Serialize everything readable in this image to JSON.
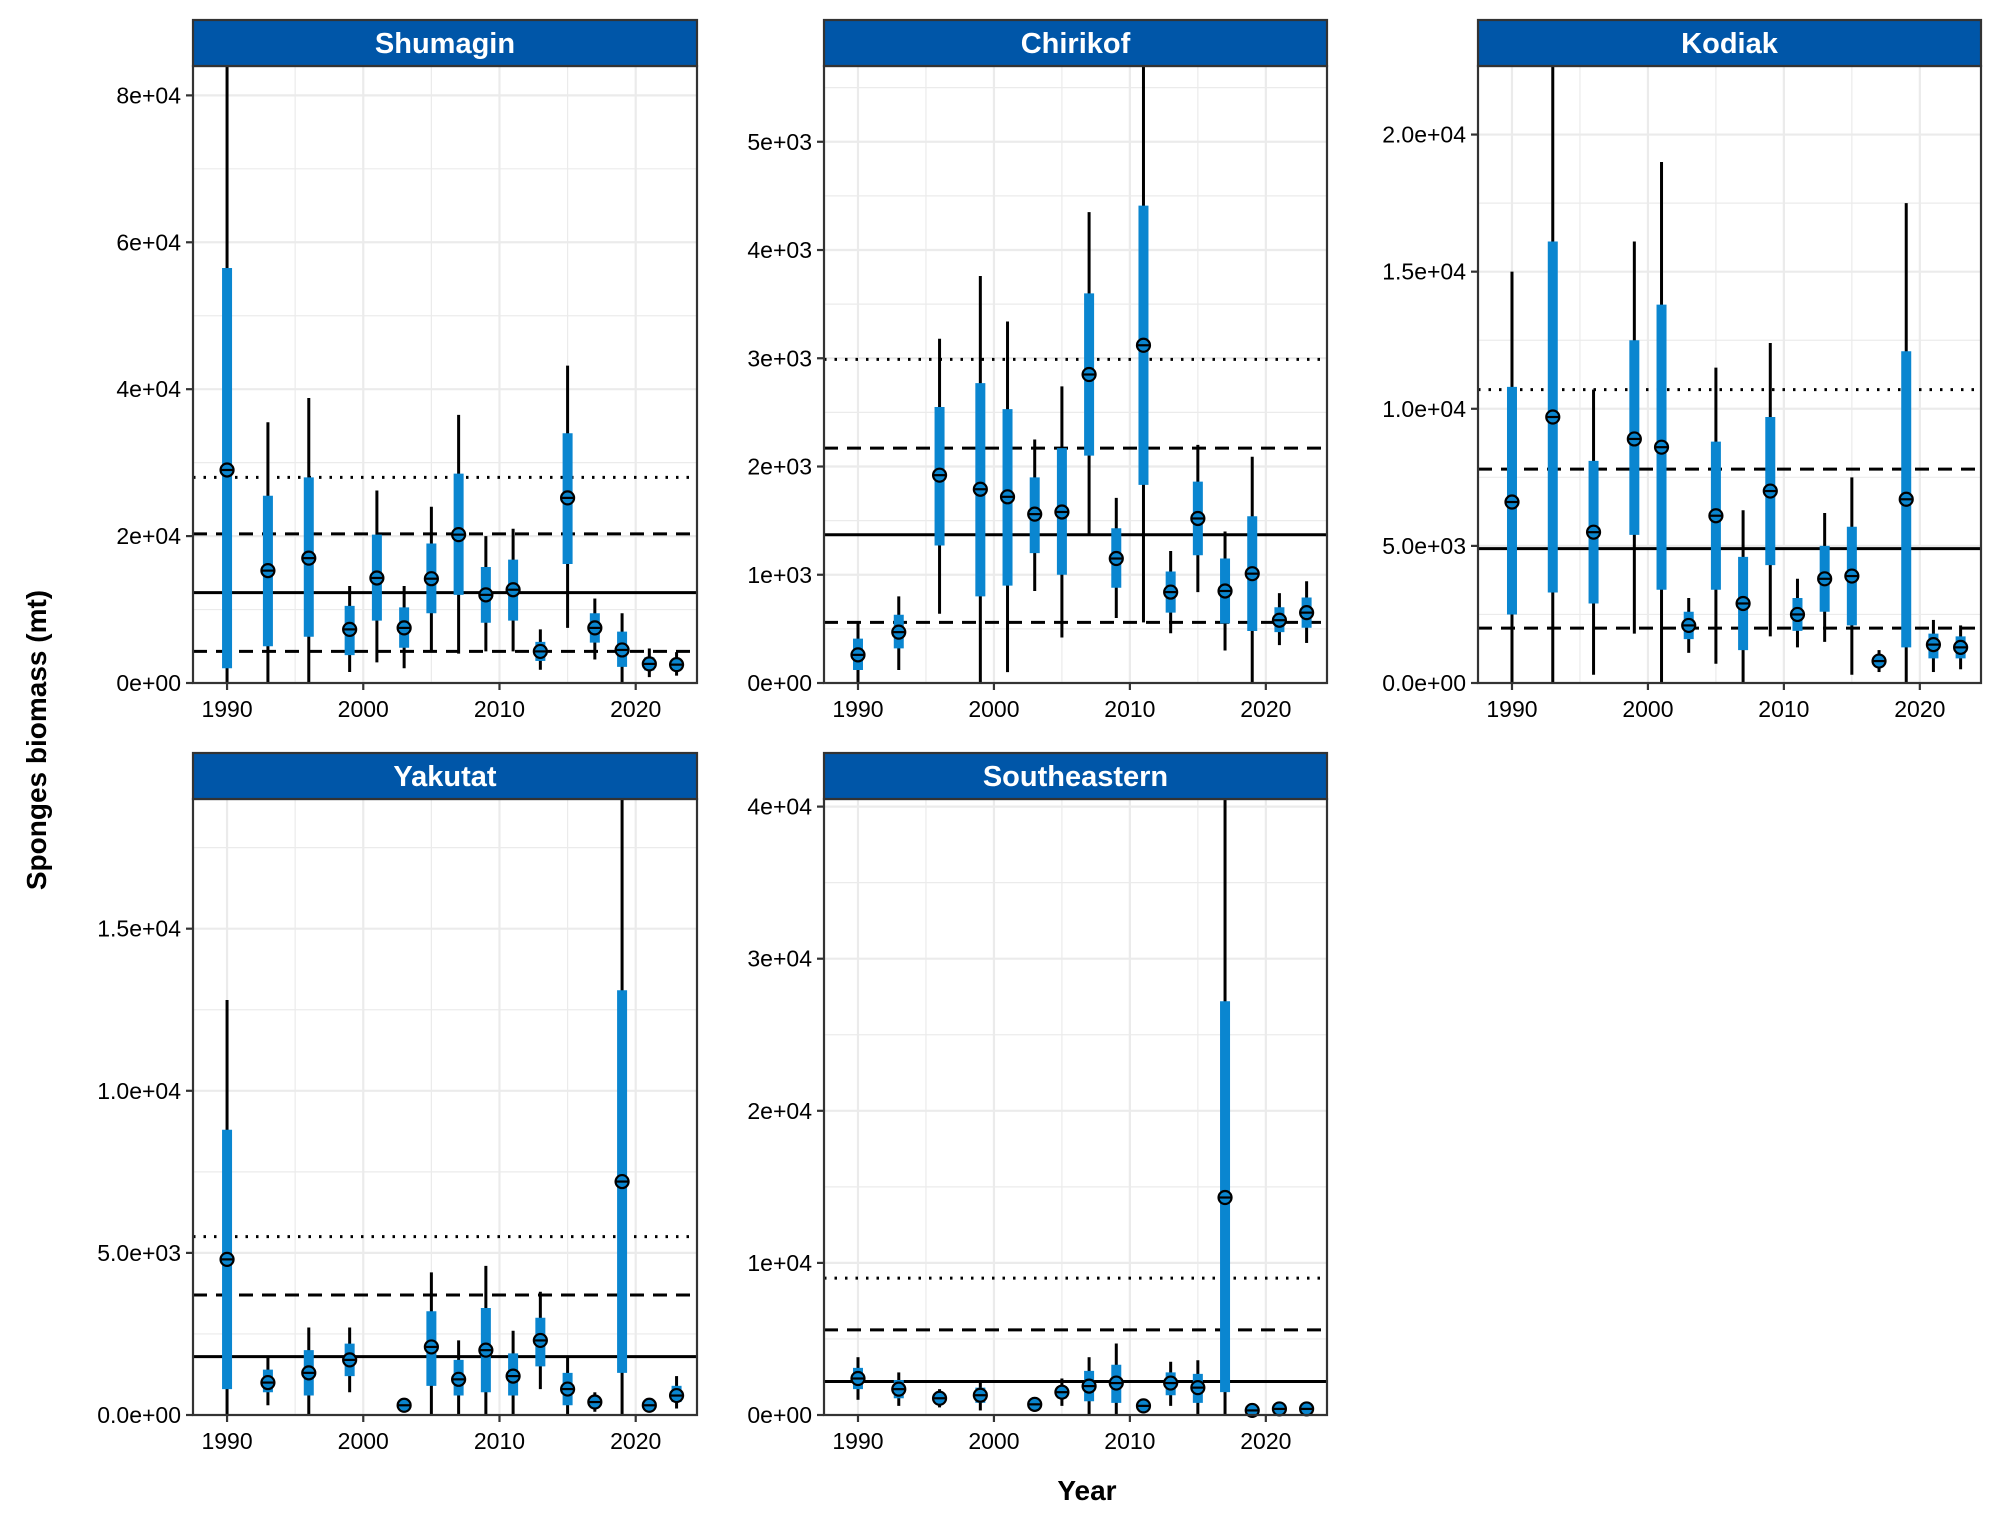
{
  "figure": {
    "xlabel": "Year",
    "ylabel": "Sponges biomass (mt)"
  },
  "colors": {
    "strip": "#0056A8",
    "interval_inner": "#0A86D0",
    "interval_outer": "#000000",
    "grid": "#EBEBEB",
    "reference_lines": "#000000"
  },
  "chart_data": [
    {
      "type": "pointrange",
      "panel": "Shumagin",
      "xlim": [
        1987.5,
        2024.5
      ],
      "ylim": [
        0,
        84000
      ],
      "x_ticks": [
        1990,
        2000,
        2010,
        2020
      ],
      "x_tick_labels": [
        "1990",
        "2000",
        "2010",
        "2020"
      ],
      "y_ticks": [
        0,
        20000,
        40000,
        60000,
        80000
      ],
      "y_tick_labels": [
        "0e+00",
        "2e+04",
        "4e+04",
        "6e+04",
        "8e+04"
      ],
      "reference_lines": {
        "mean": 12300,
        "lower": 4300,
        "upper_dashed": 20300,
        "upper_dotted": 28000
      },
      "points": [
        {
          "year": 1990,
          "value": 29000,
          "inner": [
            2000,
            56500
          ],
          "outer": [
            0,
            84000
          ]
        },
        {
          "year": 1993,
          "value": 15300,
          "inner": [
            5000,
            25500
          ],
          "outer": [
            0,
            35500
          ]
        },
        {
          "year": 1996,
          "value": 17000,
          "inner": [
            6300,
            28000
          ],
          "outer": [
            0,
            38800
          ]
        },
        {
          "year": 1999,
          "value": 7300,
          "inner": [
            3800,
            10500
          ],
          "outer": [
            1500,
            13200
          ]
        },
        {
          "year": 2001,
          "value": 14300,
          "inner": [
            8500,
            20200
          ],
          "outer": [
            2800,
            26200
          ]
        },
        {
          "year": 2003,
          "value": 7500,
          "inner": [
            4800,
            10300
          ],
          "outer": [
            2000,
            13200
          ]
        },
        {
          "year": 2005,
          "value": 14200,
          "inner": [
            9500,
            19000
          ],
          "outer": [
            4500,
            24000
          ]
        },
        {
          "year": 2007,
          "value": 20200,
          "inner": [
            12000,
            28500
          ],
          "outer": [
            4000,
            36500
          ]
        },
        {
          "year": 2009,
          "value": 12000,
          "inner": [
            8200,
            15800
          ],
          "outer": [
            4300,
            20000
          ]
        },
        {
          "year": 2011,
          "value": 12700,
          "inner": [
            8500,
            16800
          ],
          "outer": [
            4300,
            21000
          ]
        },
        {
          "year": 2013,
          "value": 4300,
          "inner": [
            3000,
            5600
          ],
          "outer": [
            1800,
            7300
          ]
        },
        {
          "year": 2015,
          "value": 25200,
          "inner": [
            16200,
            34000
          ],
          "outer": [
            7500,
            43200
          ]
        },
        {
          "year": 2017,
          "value": 7500,
          "inner": [
            5500,
            9500
          ],
          "outer": [
            3200,
            11500
          ]
        },
        {
          "year": 2019,
          "value": 4500,
          "inner": [
            2200,
            7000
          ],
          "outer": [
            0,
            9500
          ]
        },
        {
          "year": 2021,
          "value": 2600,
          "inner": [
            1700,
            3500
          ],
          "outer": [
            800,
            4700
          ]
        },
        {
          "year": 2023,
          "value": 2500,
          "inner": [
            1700,
            3300
          ],
          "outer": [
            1000,
            4200
          ]
        }
      ]
    },
    {
      "type": "pointrange",
      "panel": "Chirikof",
      "xlim": [
        1987.5,
        2024.5
      ],
      "ylim": [
        0,
        5700
      ],
      "x_ticks": [
        1990,
        2000,
        2010,
        2020
      ],
      "x_tick_labels": [
        "1990",
        "2000",
        "2010",
        "2020"
      ],
      "y_ticks": [
        0,
        1000,
        2000,
        3000,
        4000,
        5000
      ],
      "y_tick_labels": [
        "0e+00",
        "1e+03",
        "2e+03",
        "3e+03",
        "4e+03",
        "5e+03"
      ],
      "reference_lines": {
        "mean": 1370,
        "lower": 560,
        "upper_dashed": 2170,
        "upper_dotted": 2990
      },
      "points": [
        {
          "year": 1990,
          "value": 260,
          "inner": [
            120,
            410
          ],
          "outer": [
            0,
            560
          ]
        },
        {
          "year": 1993,
          "value": 470,
          "inner": [
            320,
            630
          ],
          "outer": [
            120,
            800
          ]
        },
        {
          "year": 1996,
          "value": 1920,
          "inner": [
            1270,
            2550
          ],
          "outer": [
            640,
            3180
          ]
        },
        {
          "year": 1999,
          "value": 1790,
          "inner": [
            800,
            2770
          ],
          "outer": [
            0,
            3760
          ]
        },
        {
          "year": 2001,
          "value": 1720,
          "inner": [
            900,
            2530
          ],
          "outer": [
            100,
            3340
          ]
        },
        {
          "year": 2003,
          "value": 1560,
          "inner": [
            1200,
            1900
          ],
          "outer": [
            850,
            2250
          ]
        },
        {
          "year": 2005,
          "value": 1580,
          "inner": [
            1000,
            2170
          ],
          "outer": [
            420,
            2740
          ]
        },
        {
          "year": 2007,
          "value": 2850,
          "inner": [
            2100,
            3600
          ],
          "outer": [
            1360,
            4350
          ]
        },
        {
          "year": 2009,
          "value": 1150,
          "inner": [
            880,
            1430
          ],
          "outer": [
            600,
            1710
          ]
        },
        {
          "year": 2011,
          "value": 3120,
          "inner": [
            1830,
            4410
          ],
          "outer": [
            560,
            5700
          ]
        },
        {
          "year": 2013,
          "value": 840,
          "inner": [
            650,
            1030
          ],
          "outer": [
            460,
            1220
          ]
        },
        {
          "year": 2015,
          "value": 1520,
          "inner": [
            1180,
            1860
          ],
          "outer": [
            840,
            2200
          ]
        },
        {
          "year": 2017,
          "value": 850,
          "inner": [
            550,
            1150
          ],
          "outer": [
            300,
            1400
          ]
        },
        {
          "year": 2019,
          "value": 1010,
          "inner": [
            480,
            1540
          ],
          "outer": [
            0,
            2090
          ]
        },
        {
          "year": 2021,
          "value": 580,
          "inner": [
            470,
            700
          ],
          "outer": [
            350,
            830
          ]
        },
        {
          "year": 2023,
          "value": 650,
          "inner": [
            510,
            790
          ],
          "outer": [
            370,
            940
          ]
        }
      ]
    },
    {
      "type": "pointrange",
      "panel": "Kodiak",
      "xlim": [
        1987.5,
        2024.5
      ],
      "ylim": [
        0,
        22500
      ],
      "x_ticks": [
        1990,
        2000,
        2010,
        2020
      ],
      "x_tick_labels": [
        "1990",
        "2000",
        "2010",
        "2020"
      ],
      "y_ticks": [
        0,
        5000,
        10000,
        15000,
        20000
      ],
      "y_tick_labels": [
        "0.0e+00",
        "5.0e+03",
        "1.0e+04",
        "1.5e+04",
        "2.0e+04"
      ],
      "reference_lines": {
        "mean": 4900,
        "lower": 2000,
        "upper_dashed": 7800,
        "upper_dotted": 10700
      },
      "points": [
        {
          "year": 1990,
          "value": 6600,
          "inner": [
            2500,
            10800
          ],
          "outer": [
            0,
            15000
          ]
        },
        {
          "year": 1993,
          "value": 9700,
          "inner": [
            3300,
            16100
          ],
          "outer": [
            0,
            22500
          ]
        },
        {
          "year": 1996,
          "value": 5500,
          "inner": [
            2900,
            8100
          ],
          "outer": [
            300,
            10700
          ]
        },
        {
          "year": 1999,
          "value": 8900,
          "inner": [
            5400,
            12500
          ],
          "outer": [
            1800,
            16100
          ]
        },
        {
          "year": 2001,
          "value": 8600,
          "inner": [
            3400,
            13800
          ],
          "outer": [
            0,
            19000
          ]
        },
        {
          "year": 2003,
          "value": 2100,
          "inner": [
            1600,
            2600
          ],
          "outer": [
            1100,
            3100
          ]
        },
        {
          "year": 2005,
          "value": 6100,
          "inner": [
            3400,
            8800
          ],
          "outer": [
            700,
            11500
          ]
        },
        {
          "year": 2007,
          "value": 2900,
          "inner": [
            1200,
            4600
          ],
          "outer": [
            0,
            6300
          ]
        },
        {
          "year": 2009,
          "value": 7000,
          "inner": [
            4300,
            9700
          ],
          "outer": [
            1700,
            12400
          ]
        },
        {
          "year": 2011,
          "value": 2500,
          "inner": [
            1900,
            3100
          ],
          "outer": [
            1300,
            3800
          ]
        },
        {
          "year": 2013,
          "value": 3800,
          "inner": [
            2600,
            5000
          ],
          "outer": [
            1500,
            6200
          ]
        },
        {
          "year": 2015,
          "value": 3900,
          "inner": [
            2100,
            5700
          ],
          "outer": [
            300,
            7500
          ]
        },
        {
          "year": 2017,
          "value": 800,
          "inner": [
            600,
            1000
          ],
          "outer": [
            400,
            1200
          ]
        },
        {
          "year": 2019,
          "value": 6700,
          "inner": [
            1300,
            12100
          ],
          "outer": [
            0,
            17500
          ]
        },
        {
          "year": 2021,
          "value": 1400,
          "inner": [
            900,
            1800
          ],
          "outer": [
            400,
            2300
          ]
        },
        {
          "year": 2023,
          "value": 1300,
          "inner": [
            900,
            1700
          ],
          "outer": [
            500,
            2100
          ]
        }
      ]
    },
    {
      "type": "pointrange",
      "panel": "Yakutat",
      "xlim": [
        1987.5,
        2024.5
      ],
      "ylim": [
        0,
        19000
      ],
      "x_ticks": [
        1990,
        2000,
        2010,
        2020
      ],
      "x_tick_labels": [
        "1990",
        "2000",
        "2010",
        "2020"
      ],
      "y_ticks": [
        0,
        5000,
        10000,
        15000
      ],
      "y_tick_labels": [
        "0.0e+00",
        "5.0e+03",
        "1.0e+04",
        "1.5e+04"
      ],
      "reference_lines": {
        "mean": 1800,
        "lower": null,
        "upper_dashed": 3700,
        "upper_dotted": 5500
      },
      "points": [
        {
          "year": 1990,
          "value": 4800,
          "inner": [
            800,
            8800
          ],
          "outer": [
            0,
            12800
          ]
        },
        {
          "year": 1993,
          "value": 1000,
          "inner": [
            700,
            1400
          ],
          "outer": [
            300,
            1800
          ]
        },
        {
          "year": 1996,
          "value": 1300,
          "inner": [
            600,
            2000
          ],
          "outer": [
            0,
            2700
          ]
        },
        {
          "year": 1999,
          "value": 1700,
          "inner": [
            1200,
            2200
          ],
          "outer": [
            700,
            2700
          ]
        },
        {
          "year": 2003,
          "value": 300,
          "inner": [
            200,
            400
          ],
          "outer": [
            100,
            500
          ]
        },
        {
          "year": 2005,
          "value": 2100,
          "inner": [
            900,
            3200
          ],
          "outer": [
            0,
            4400
          ]
        },
        {
          "year": 2007,
          "value": 1100,
          "inner": [
            600,
            1700
          ],
          "outer": [
            0,
            2300
          ]
        },
        {
          "year": 2009,
          "value": 2000,
          "inner": [
            700,
            3300
          ],
          "outer": [
            0,
            4600
          ]
        },
        {
          "year": 2011,
          "value": 1200,
          "inner": [
            600,
            1900
          ],
          "outer": [
            0,
            2600
          ]
        },
        {
          "year": 2013,
          "value": 2300,
          "inner": [
            1500,
            3000
          ],
          "outer": [
            800,
            3800
          ]
        },
        {
          "year": 2015,
          "value": 800,
          "inner": [
            300,
            1300
          ],
          "outer": [
            0,
            1800
          ]
        },
        {
          "year": 2017,
          "value": 400,
          "inner": [
            250,
            550
          ],
          "outer": [
            100,
            700
          ]
        },
        {
          "year": 2019,
          "value": 7200,
          "inner": [
            1300,
            13100
          ],
          "outer": [
            0,
            19000
          ]
        },
        {
          "year": 2021,
          "value": 300,
          "inner": [
            200,
            400
          ],
          "outer": [
            100,
            500
          ]
        },
        {
          "year": 2023,
          "value": 600,
          "inner": [
            400,
            900
          ],
          "outer": [
            200,
            1200
          ]
        }
      ]
    },
    {
      "type": "pointrange",
      "panel": "Southeastern",
      "xlim": [
        1987.5,
        2024.5
      ],
      "ylim": [
        0,
        40500
      ],
      "x_ticks": [
        1990,
        2000,
        2010,
        2020
      ],
      "x_tick_labels": [
        "1990",
        "2000",
        "2010",
        "2020"
      ],
      "y_ticks": [
        0,
        10000,
        20000,
        30000,
        40000
      ],
      "y_tick_labels": [
        "0e+00",
        "1e+04",
        "2e+04",
        "3e+04",
        "4e+04"
      ],
      "reference_lines": {
        "mean": 2200,
        "lower": null,
        "upper_dashed": 5600,
        "upper_dotted": 9000
      },
      "points": [
        {
          "year": 1990,
          "value": 2400,
          "inner": [
            1700,
            3100
          ],
          "outer": [
            1000,
            3800
          ]
        },
        {
          "year": 1993,
          "value": 1700,
          "inner": [
            1100,
            2300
          ],
          "outer": [
            600,
            2800
          ]
        },
        {
          "year": 1996,
          "value": 1100,
          "inner": [
            800,
            1400
          ],
          "outer": [
            500,
            1700
          ]
        },
        {
          "year": 1999,
          "value": 1300,
          "inner": [
            800,
            1800
          ],
          "outer": [
            300,
            2300
          ]
        },
        {
          "year": 2003,
          "value": 700,
          "inner": [
            500,
            900
          ],
          "outer": [
            300,
            1100
          ]
        },
        {
          "year": 2005,
          "value": 1500,
          "inner": [
            1100,
            1900
          ],
          "outer": [
            600,
            2400
          ]
        },
        {
          "year": 2007,
          "value": 1900,
          "inner": [
            900,
            2900
          ],
          "outer": [
            0,
            3800
          ]
        },
        {
          "year": 2009,
          "value": 2100,
          "inner": [
            800,
            3300
          ],
          "outer": [
            0,
            4700
          ]
        },
        {
          "year": 2011,
          "value": 600,
          "inner": [
            400,
            800
          ],
          "outer": [
            200,
            1000
          ]
        },
        {
          "year": 2013,
          "value": 2100,
          "inner": [
            1300,
            2800
          ],
          "outer": [
            600,
            3500
          ]
        },
        {
          "year": 2015,
          "value": 1800,
          "inner": [
            800,
            2700
          ],
          "outer": [
            0,
            3600
          ]
        },
        {
          "year": 2017,
          "value": 14300,
          "inner": [
            1500,
            27200
          ],
          "outer": [
            0,
            40500
          ]
        },
        {
          "year": 2019,
          "value": 300,
          "inner": [
            200,
            400
          ],
          "outer": [
            100,
            500
          ]
        },
        {
          "year": 2021,
          "value": 400,
          "inner": [
            300,
            500
          ],
          "outer": [
            200,
            600
          ]
        },
        {
          "year": 2023,
          "value": 400,
          "inner": [
            300,
            500
          ],
          "outer": [
            200,
            600
          ]
        }
      ]
    }
  ]
}
